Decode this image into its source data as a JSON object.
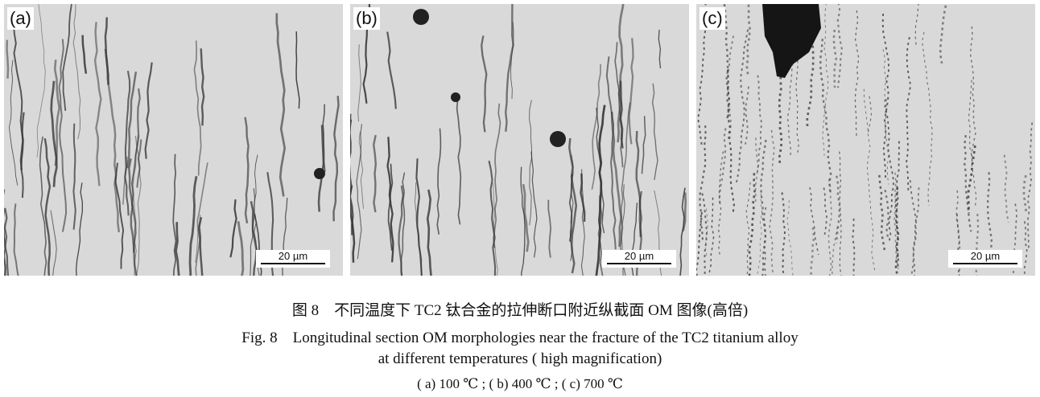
{
  "panels": [
    {
      "label": "(a)",
      "scale_bar": "20 µm"
    },
    {
      "label": "(b)",
      "scale_bar": "20 µm"
    },
    {
      "label": "(c)",
      "scale_bar": "20 µm"
    }
  ],
  "caption": {
    "zh": "图 8　不同温度下 TC2 钛合金的拉伸断口附近纵截面 OM 图像(高倍)",
    "en_line1": "Fig. 8　Longitudinal section OM morphologies near the fracture of the TC2 titanium alloy",
    "en_line2": "at different temperatures ( high magnification)",
    "sub": "( a) 100 ℃ ; ( b) 400 ℃ ; ( c) 700 ℃"
  }
}
